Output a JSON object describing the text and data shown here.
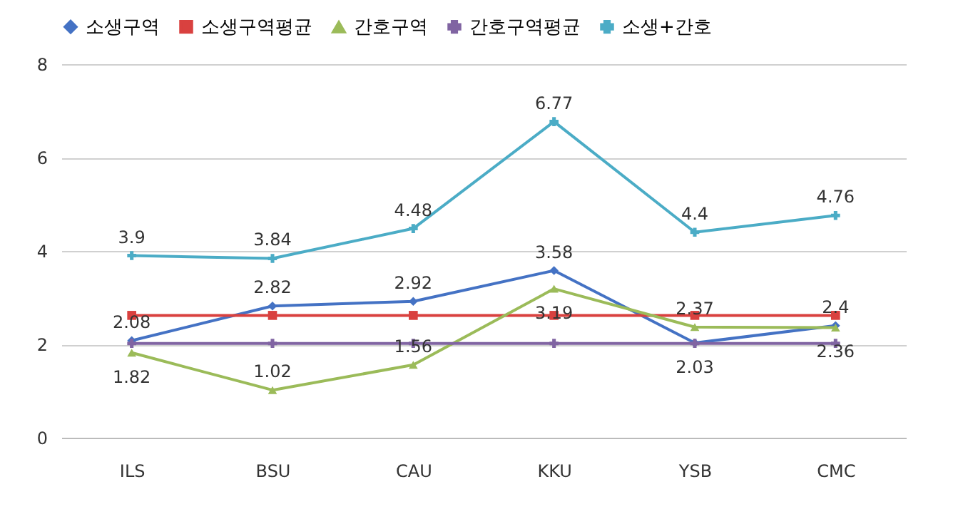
{
  "chart_data": {
    "type": "line",
    "categories": [
      "ILS",
      "BSU",
      "CAU",
      "KKU",
      "YSB",
      "CMC"
    ],
    "ylim": [
      0,
      8
    ],
    "yticks": [
      0,
      2,
      4,
      6,
      8
    ],
    "grid": "y",
    "legend": "top",
    "series": [
      {
        "name": "소생구역",
        "color": "#4472c4",
        "marker": "diamond",
        "values": [
          2.08,
          2.82,
          2.92,
          3.58,
          2.03,
          2.4
        ],
        "value_labels": [
          "2.08",
          "2.82",
          "2.92",
          "3.58",
          "2.03",
          "2.4"
        ]
      },
      {
        "name": "소생구역평균",
        "color": "#d9413f",
        "marker": "square",
        "values": [
          2.62,
          2.62,
          2.62,
          2.62,
          2.62,
          2.62
        ]
      },
      {
        "name": "간호구역",
        "color": "#9bbb59",
        "marker": "triangle",
        "values": [
          1.82,
          1.02,
          1.56,
          3.19,
          2.37,
          2.36
        ],
        "value_labels": [
          "1.82",
          "1.02",
          "1.56",
          "3.19",
          "2.37",
          "2.36"
        ]
      },
      {
        "name": "간호구역평균",
        "color": "#8064a2",
        "marker": "cross",
        "values": [
          2.02,
          2.02,
          2.02,
          2.02,
          2.02,
          2.02
        ]
      },
      {
        "name": "소생+간호",
        "color": "#4bacc6",
        "marker": "cross",
        "values": [
          3.9,
          3.84,
          4.48,
          6.77,
          4.4,
          4.76
        ],
        "value_labels": [
          "3.9",
          "3.84",
          "4.48",
          "6.77",
          "4.4",
          "4.76"
        ]
      }
    ]
  }
}
